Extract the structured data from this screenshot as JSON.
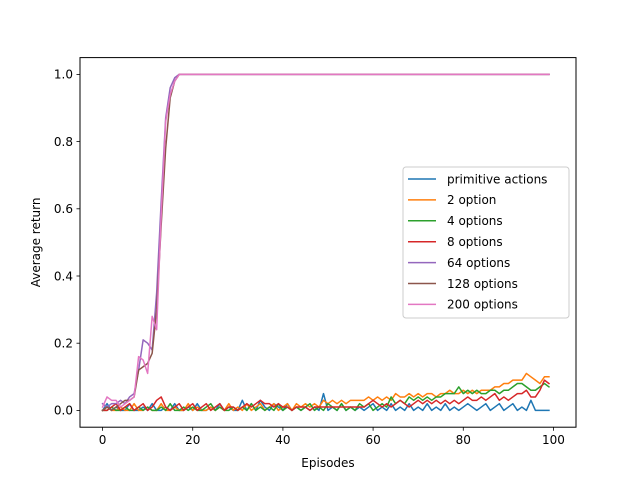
{
  "chart_data": {
    "type": "line",
    "xlabel": "Episodes",
    "ylabel": "Average return",
    "xlim": [
      -5,
      105
    ],
    "ylim": [
      -0.05,
      1.05
    ],
    "xticks": [
      0,
      20,
      40,
      60,
      80,
      100
    ],
    "yticks": [
      0.0,
      0.2,
      0.4,
      0.6,
      0.8,
      1.0
    ],
    "grid": false,
    "legend": "center-right",
    "series": [
      {
        "name": "primitive actions",
        "color": "#1f77b4",
        "values": [
          0,
          0.02,
          0,
          0.01,
          0,
          0,
          0.02,
          0,
          0,
          0.01,
          0,
          0.02,
          0,
          0,
          0.01,
          0,
          0.02,
          0,
          0,
          0.01,
          0,
          0.02,
          0,
          0,
          0.01,
          0,
          0.02,
          0,
          0.01,
          0,
          0,
          0.03,
          0,
          0.02,
          0,
          0.03,
          0.01,
          0,
          0.02,
          0.01,
          0,
          0.02,
          0,
          0.01,
          0,
          0.01,
          0,
          0.01,
          0,
          0.05,
          0,
          0.01,
          0,
          0.02,
          0,
          0.01,
          0,
          0.01,
          0,
          0.01,
          0.02,
          0,
          0.01,
          0,
          0.02,
          0,
          0.01,
          0,
          0.02,
          0,
          0.01,
          0,
          0.02,
          0,
          0.01,
          0,
          0.02,
          0,
          0.01,
          0,
          0.01,
          0.02,
          0.01,
          0,
          0.01,
          0.02,
          0,
          0.01,
          0.02,
          0,
          0.01,
          0.02,
          0,
          0.01,
          0,
          0.03,
          0,
          0,
          0,
          0
        ]
      },
      {
        "name": "2 option",
        "color": "#ff7f0e",
        "values": [
          0,
          0.01,
          0,
          0,
          0.01,
          0,
          0,
          0.02,
          0,
          0,
          0.01,
          0,
          0,
          0.02,
          0,
          0,
          0.01,
          0,
          0,
          0.02,
          0,
          0.01,
          0,
          0,
          0.01,
          0,
          0.01,
          0,
          0.02,
          0,
          0.01,
          0,
          0.02,
          0,
          0.01,
          0.02,
          0,
          0.01,
          0.02,
          0,
          0.01,
          0.02,
          0,
          0.02,
          0.01,
          0.02,
          0.01,
          0.02,
          0.01,
          0.03,
          0.02,
          0.03,
          0.02,
          0.03,
          0.02,
          0.03,
          0.03,
          0.03,
          0.03,
          0.04,
          0.03,
          0.04,
          0.03,
          0.04,
          0.03,
          0.05,
          0.04,
          0.04,
          0.05,
          0.04,
          0.05,
          0.04,
          0.05,
          0.05,
          0.04,
          0.05,
          0.05,
          0.06,
          0.05,
          0.05,
          0.06,
          0.05,
          0.06,
          0.05,
          0.06,
          0.06,
          0.06,
          0.07,
          0.07,
          0.08,
          0.08,
          0.09,
          0.09,
          0.09,
          0.11,
          0.1,
          0.09,
          0.08,
          0.1,
          0.1
        ]
      },
      {
        "name": "4 options",
        "color": "#2ca02c",
        "values": [
          0,
          0,
          0.01,
          0,
          0,
          0.01,
          0,
          0,
          0.01,
          0,
          0.01,
          0,
          0,
          0.01,
          0,
          0.02,
          0,
          0,
          0.01,
          0,
          0.01,
          0,
          0,
          0.01,
          0.02,
          0,
          0.01,
          0,
          0,
          0.01,
          0,
          0.01,
          0,
          0.02,
          0,
          0.01,
          0,
          0.01,
          0,
          0.02,
          0,
          0.01,
          0,
          0.01,
          0,
          0.01,
          0.02,
          0,
          0.01,
          0,
          0.02,
          0.01,
          0,
          0.02,
          0,
          0.01,
          0,
          0.02,
          0.01,
          0.02,
          0,
          0.01,
          0.02,
          0.01,
          0.04,
          0.02,
          0.03,
          0.02,
          0.04,
          0.03,
          0.04,
          0.03,
          0.04,
          0.03,
          0.04,
          0.04,
          0.05,
          0.05,
          0.05,
          0.07,
          0.05,
          0.06,
          0.05,
          0.06,
          0.05,
          0.05,
          0.06,
          0.06,
          0.05,
          0.06,
          0.06,
          0.07,
          0.08,
          0.08,
          0.07,
          0.06,
          0.06,
          0.07,
          0.08,
          0.07
        ]
      },
      {
        "name": "8 options",
        "color": "#d62728",
        "values": [
          0,
          0,
          0.01,
          0.02,
          0,
          0.01,
          0.02,
          0,
          0.01,
          0.02,
          0,
          0.01,
          0.03,
          0.04,
          0.01,
          0,
          0.01,
          0.02,
          0,
          0.01,
          0.02,
          0,
          0.01,
          0.02,
          0,
          0.01,
          0.02,
          0,
          0.01,
          0.01,
          0,
          0.01,
          0.02,
          0.01,
          0.02,
          0.03,
          0.02,
          0.02,
          0.01,
          0.02,
          0.01,
          0.01,
          0,
          0.01,
          0.01,
          0.01,
          0,
          0.01,
          0.01,
          0.01,
          0.01,
          0.01,
          0.01,
          0.01,
          0.01,
          0.01,
          0.01,
          0.01,
          0.01,
          0.02,
          0.03,
          0.02,
          0.01,
          0.02,
          0.01,
          0.02,
          0.03,
          0.02,
          0.01,
          0.02,
          0.03,
          0.02,
          0.03,
          0.02,
          0.03,
          0.02,
          0.03,
          0.02,
          0.03,
          0.02,
          0.03,
          0.04,
          0.03,
          0.03,
          0.04,
          0.03,
          0.04,
          0.05,
          0.03,
          0.04,
          0.03,
          0.04,
          0.05,
          0.05,
          0.06,
          0.04,
          0.04,
          0.06,
          0.09,
          0.08
        ]
      },
      {
        "name": "64 options",
        "color": "#9467bd",
        "values": [
          0.02,
          0.01,
          0.02,
          0.02,
          0.03,
          0.02,
          0.04,
          0.05,
          0.12,
          0.21,
          0.2,
          0.18,
          0.35,
          0.62,
          0.87,
          0.96,
          0.99,
          1.0,
          1.0,
          1.0,
          1.0,
          1.0,
          1.0,
          1.0,
          1.0,
          1.0,
          1.0,
          1.0,
          1.0,
          1.0,
          1.0,
          1.0,
          1.0,
          1.0,
          1.0,
          1.0,
          1.0,
          1.0,
          1.0,
          1.0,
          1.0,
          1.0,
          1.0,
          1.0,
          1.0,
          1.0,
          1.0,
          1.0,
          1.0,
          1.0,
          1.0,
          1.0,
          1.0,
          1.0,
          1.0,
          1.0,
          1.0,
          1.0,
          1.0,
          1.0,
          1.0,
          1.0,
          1.0,
          1.0,
          1.0,
          1.0,
          1.0,
          1.0,
          1.0,
          1.0,
          1.0,
          1.0,
          1.0,
          1.0,
          1.0,
          1.0,
          1.0,
          1.0,
          1.0,
          1.0,
          1.0,
          1.0,
          1.0,
          1.0,
          1.0,
          1.0,
          1.0,
          1.0,
          1.0,
          1.0,
          1.0,
          1.0,
          1.0,
          1.0,
          1.0,
          1.0,
          1.0,
          1.0,
          1.0,
          1.0
        ]
      },
      {
        "name": "128 options",
        "color": "#8c564b",
        "values": [
          0,
          0.01,
          0,
          0.01,
          0.02,
          0.03,
          0.03,
          0.04,
          0.12,
          0.13,
          0.14,
          0.17,
          0.3,
          0.55,
          0.78,
          0.93,
          0.98,
          1.0,
          1.0,
          1.0,
          1.0,
          1.0,
          1.0,
          1.0,
          1.0,
          1.0,
          1.0,
          1.0,
          1.0,
          1.0,
          1.0,
          1.0,
          1.0,
          1.0,
          1.0,
          1.0,
          1.0,
          1.0,
          1.0,
          1.0,
          1.0,
          1.0,
          1.0,
          1.0,
          1.0,
          1.0,
          1.0,
          1.0,
          1.0,
          1.0,
          1.0,
          1.0,
          1.0,
          1.0,
          1.0,
          1.0,
          1.0,
          1.0,
          1.0,
          1.0,
          1.0,
          1.0,
          1.0,
          1.0,
          1.0,
          1.0,
          1.0,
          1.0,
          1.0,
          1.0,
          1.0,
          1.0,
          1.0,
          1.0,
          1.0,
          1.0,
          1.0,
          1.0,
          1.0,
          1.0,
          1.0,
          1.0,
          1.0,
          1.0,
          1.0,
          1.0,
          1.0,
          1.0,
          1.0,
          1.0,
          1.0,
          1.0,
          1.0,
          1.0,
          1.0,
          1.0,
          1.0,
          1.0,
          1.0,
          1.0
        ]
      },
      {
        "name": "200 options",
        "color": "#e377c2",
        "values": [
          0.01,
          0.04,
          0.03,
          0.03,
          0.01,
          0.02,
          0.03,
          0.04,
          0.16,
          0.15,
          0.11,
          0.28,
          0.24,
          0.58,
          0.86,
          0.94,
          0.98,
          1.0,
          1.0,
          1.0,
          1.0,
          1.0,
          1.0,
          1.0,
          1.0,
          1.0,
          1.0,
          1.0,
          1.0,
          1.0,
          1.0,
          1.0,
          1.0,
          1.0,
          1.0,
          1.0,
          1.0,
          1.0,
          1.0,
          1.0,
          1.0,
          1.0,
          1.0,
          1.0,
          1.0,
          1.0,
          1.0,
          1.0,
          1.0,
          1.0,
          1.0,
          1.0,
          1.0,
          1.0,
          1.0,
          1.0,
          1.0,
          1.0,
          1.0,
          1.0,
          1.0,
          1.0,
          1.0,
          1.0,
          1.0,
          1.0,
          1.0,
          1.0,
          1.0,
          1.0,
          1.0,
          1.0,
          1.0,
          1.0,
          1.0,
          1.0,
          1.0,
          1.0,
          1.0,
          1.0,
          1.0,
          1.0,
          1.0,
          1.0,
          1.0,
          1.0,
          1.0,
          1.0,
          1.0,
          1.0,
          1.0,
          1.0,
          1.0,
          1.0,
          1.0,
          1.0,
          1.0,
          1.0,
          1.0,
          1.0
        ]
      }
    ]
  }
}
